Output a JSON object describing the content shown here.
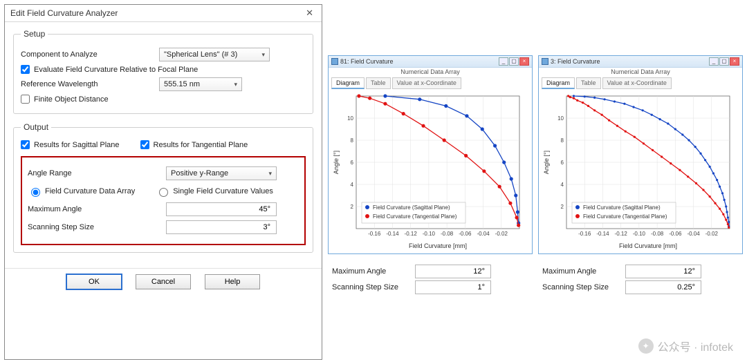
{
  "dialog": {
    "title": "Edit Field Curvature Analyzer",
    "setup": {
      "legend": "Setup",
      "component_label": "Component to Analyze",
      "component_value": "\"Spherical Lens\" (# 3)",
      "eval_relative": "Evaluate Field Curvature Relative to Focal Plane",
      "ref_wl_label": "Reference Wavelength",
      "ref_wl_value": "555.15 nm",
      "finite_obj": "Finite Object Distance"
    },
    "output": {
      "legend": "Output",
      "sagittal": "Results for Sagittal Plane",
      "tangential": "Results for Tangential Plane",
      "angle_range_label": "Angle Range",
      "angle_range_value": "Positive y-Range",
      "radio_data_array": "Field Curvature Data Array",
      "radio_single_vals": "Single Field Curvature Values",
      "max_angle_label": "Maximum Angle",
      "max_angle_value": "45°",
      "step_label": "Scanning Step Size",
      "step_value": "3°"
    },
    "buttons": {
      "ok": "OK",
      "cancel": "Cancel",
      "help": "Help"
    }
  },
  "fig1": {
    "window_title": "81: Field Curvature",
    "subtitle": "Numerical Data Array",
    "tabs": [
      "Diagram",
      "Table",
      "Value at x-Coordinate"
    ],
    "chart": {
      "xlabel": "Field Curvature [mm]",
      "ylabel": "Angle [°]",
      "xlim": [
        -0.18,
        0.0
      ],
      "xticks": [
        -0.16,
        -0.14,
        -0.12,
        -0.1,
        -0.08,
        -0.06,
        -0.04,
        -0.02
      ],
      "ylim": [
        0,
        12
      ],
      "yticks": [
        2,
        4,
        6,
        8,
        10
      ],
      "bg": "#ffffff",
      "grid": "#e0e0e0",
      "axis": "#666666",
      "series": [
        {
          "name": "Field Curvature (Sagittal Plane)",
          "color": "#1545c4",
          "marker": "circle",
          "points": [
            [
              -0.001,
              0.5
            ],
            [
              -0.002,
              1.5
            ],
            [
              -0.004,
              3.0
            ],
            [
              -0.009,
              4.5
            ],
            [
              -0.017,
              6.0
            ],
            [
              -0.027,
              7.5
            ],
            [
              -0.041,
              9.0
            ],
            [
              -0.058,
              10.2
            ],
            [
              -0.081,
              11.1
            ],
            [
              -0.11,
              11.7
            ],
            [
              -0.148,
              12.0
            ]
          ]
        },
        {
          "name": "Field Curvature (Tangential Plane)",
          "color": "#e11212",
          "marker": "circle",
          "points": [
            [
              -0.001,
              0.3
            ],
            [
              -0.003,
              1.0
            ],
            [
              -0.01,
              2.3
            ],
            [
              -0.022,
              3.8
            ],
            [
              -0.039,
              5.2
            ],
            [
              -0.059,
              6.6
            ],
            [
              -0.083,
              8.0
            ],
            [
              -0.106,
              9.3
            ],
            [
              -0.128,
              10.4
            ],
            [
              -0.148,
              11.3
            ],
            [
              -0.165,
              11.8
            ],
            [
              -0.177,
              12.0
            ]
          ]
        }
      ],
      "legend_pos": "bottom-left"
    },
    "params": {
      "max_angle_label": "Maximum Angle",
      "max_angle": "12°",
      "step_label": "Scanning Step Size",
      "step": "1°"
    }
  },
  "fig2": {
    "window_title": "3: Field Curvature",
    "subtitle": "Numerical Data Array",
    "tabs": [
      "Diagram",
      "Table",
      "Value at x-Coordinate"
    ],
    "chart": {
      "xlabel": "Field Curvature [mm]",
      "ylabel": "Angle [°]",
      "xlim": [
        -0.18,
        0.0
      ],
      "xticks": [
        -0.16,
        -0.14,
        -0.12,
        -0.1,
        -0.08,
        -0.06,
        -0.04,
        -0.02
      ],
      "ylim": [
        0,
        12
      ],
      "yticks": [
        2,
        4,
        6,
        8,
        10
      ],
      "bg": "#ffffff",
      "grid": "#e0e0e0",
      "axis": "#666666",
      "series": [
        {
          "name": "Field Curvature (Sagittal Plane)",
          "color": "#1545c4",
          "marker": "dot",
          "dense": true,
          "points": [
            [
              -0.001,
              0.2
            ],
            [
              -0.001,
              0.6
            ],
            [
              -0.002,
              1.0
            ],
            [
              -0.003,
              1.5
            ],
            [
              -0.004,
              2.0
            ],
            [
              -0.006,
              2.6
            ],
            [
              -0.008,
              3.2
            ],
            [
              -0.011,
              3.8
            ],
            [
              -0.014,
              4.4
            ],
            [
              -0.018,
              5.0
            ],
            [
              -0.022,
              5.6
            ],
            [
              -0.027,
              6.2
            ],
            [
              -0.032,
              6.8
            ],
            [
              -0.038,
              7.4
            ],
            [
              -0.045,
              8.0
            ],
            [
              -0.052,
              8.5
            ],
            [
              -0.06,
              9.0
            ],
            [
              -0.068,
              9.5
            ],
            [
              -0.077,
              9.9
            ],
            [
              -0.086,
              10.3
            ],
            [
              -0.096,
              10.7
            ],
            [
              -0.106,
              11.0
            ],
            [
              -0.116,
              11.3
            ],
            [
              -0.127,
              11.5
            ],
            [
              -0.138,
              11.7
            ],
            [
              -0.149,
              11.85
            ],
            [
              -0.16,
              11.95
            ],
            [
              -0.172,
              12.0
            ]
          ]
        },
        {
          "name": "Field Curvature (Tangential Plane)",
          "color": "#e11212",
          "marker": "dot",
          "dense": true,
          "points": [
            [
              -0.001,
              0.1
            ],
            [
              -0.002,
              0.4
            ],
            [
              -0.004,
              0.8
            ],
            [
              -0.007,
              1.3
            ],
            [
              -0.011,
              1.8
            ],
            [
              -0.016,
              2.3
            ],
            [
              -0.022,
              2.9
            ],
            [
              -0.029,
              3.5
            ],
            [
              -0.037,
              4.1
            ],
            [
              -0.046,
              4.7
            ],
            [
              -0.055,
              5.3
            ],
            [
              -0.065,
              5.9
            ],
            [
              -0.075,
              6.5
            ],
            [
              -0.085,
              7.1
            ],
            [
              -0.095,
              7.7
            ],
            [
              -0.105,
              8.3
            ],
            [
              -0.115,
              8.8
            ],
            [
              -0.124,
              9.3
            ],
            [
              -0.133,
              9.8
            ],
            [
              -0.141,
              10.3
            ],
            [
              -0.149,
              10.7
            ],
            [
              -0.156,
              11.1
            ],
            [
              -0.162,
              11.4
            ],
            [
              -0.168,
              11.6
            ],
            [
              -0.172,
              11.8
            ],
            [
              -0.176,
              11.9
            ],
            [
              -0.178,
              12.0
            ]
          ]
        }
      ],
      "legend_pos": "bottom-left"
    },
    "params": {
      "max_angle_label": "Maximum Angle",
      "max_angle": "12°",
      "step_label": "Scanning Step Size",
      "step": "0.25°"
    }
  },
  "watermark": {
    "label": "公众号 · infotek"
  }
}
